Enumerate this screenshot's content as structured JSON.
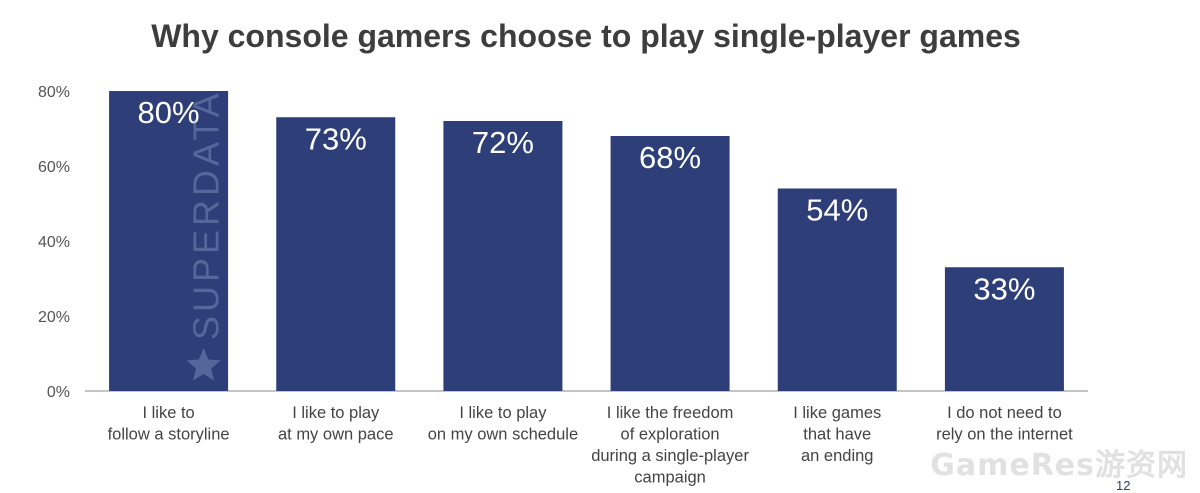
{
  "chart_data": {
    "type": "bar",
    "title": "Why console gamers choose to play single-player games",
    "categories": [
      [
        "I like to",
        "follow a storyline"
      ],
      [
        "I like to play",
        "at my own pace"
      ],
      [
        "I like to play",
        "on my own schedule"
      ],
      [
        "I like the freedom",
        "of exploration",
        "during a single-player",
        "campaign"
      ],
      [
        "I like games",
        "that have",
        "an ending"
      ],
      [
        "I do not need to",
        "rely on the internet"
      ]
    ],
    "values": [
      80,
      73,
      72,
      68,
      54,
      33
    ],
    "data_labels": [
      "80%",
      "73%",
      "72%",
      "68%",
      "54%",
      "33%"
    ],
    "yticks": [
      0,
      20,
      40,
      60,
      80
    ],
    "ytick_labels": [
      "0%",
      "20%",
      "40%",
      "60%",
      "80%"
    ],
    "ylim": [
      0,
      80
    ],
    "xlabel": "",
    "ylabel": "",
    "grid": false,
    "bar_color": "#2d3e79",
    "label_color": "#ffffff"
  },
  "watermark": {
    "brand": "SUPERDATA",
    "corner_text": "GameRes游资网"
  },
  "page_number": "12"
}
